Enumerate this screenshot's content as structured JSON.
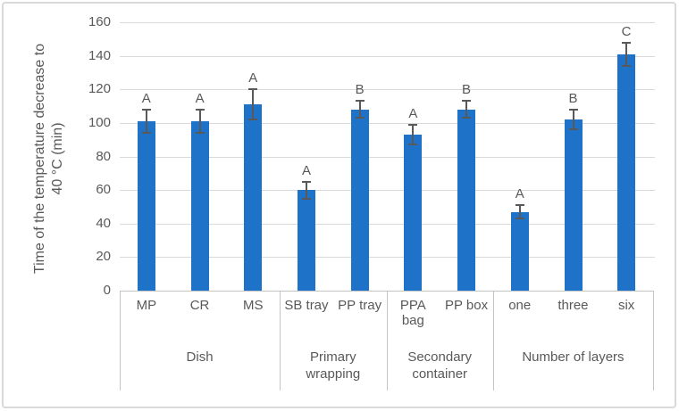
{
  "figure": {
    "background_color": "#ffffff",
    "border_color": "#d9d9d9"
  },
  "chart_data": {
    "type": "bar",
    "title": "",
    "xlabel": "",
    "ylabel": "Time of the temperature decrease to 40 °C (min)",
    "ylabel_lines": [
      "Time of the temperature decrease to",
      "40 °C (min)"
    ],
    "ylim": [
      0,
      160
    ],
    "yticks": [
      0,
      20,
      40,
      60,
      80,
      100,
      120,
      140,
      160
    ],
    "grid": true,
    "legend": "none",
    "categories": [
      "MP",
      "CR",
      "MS",
      "SB tray",
      "PP tray",
      "PPA bag",
      "PP box",
      "one",
      "three",
      "six"
    ],
    "values": [
      101,
      101,
      111,
      60,
      108,
      93,
      108,
      47,
      102,
      141
    ],
    "error_bars": [
      7,
      7,
      9,
      5,
      5,
      6,
      5,
      4,
      6,
      7
    ],
    "significance_letters": [
      "A",
      "A",
      "A",
      "A",
      "B",
      "A",
      "B",
      "A",
      "B",
      "C"
    ],
    "groups": [
      {
        "label": "Dish",
        "span": [
          0,
          3
        ]
      },
      {
        "label": "Primary wrapping",
        "span": [
          3,
          5
        ]
      },
      {
        "label": "Secondary container",
        "span": [
          5,
          7
        ]
      },
      {
        "label": "Number of layers",
        "span": [
          7,
          10
        ]
      }
    ],
    "wrapped_categories": [
      "PPA bag"
    ],
    "colors": {
      "bar": "#1e73c8",
      "error_bar": "#595959",
      "text": "#595959",
      "gridline": "#d9d9d9",
      "axis_line": "#c4c4c4"
    }
  }
}
